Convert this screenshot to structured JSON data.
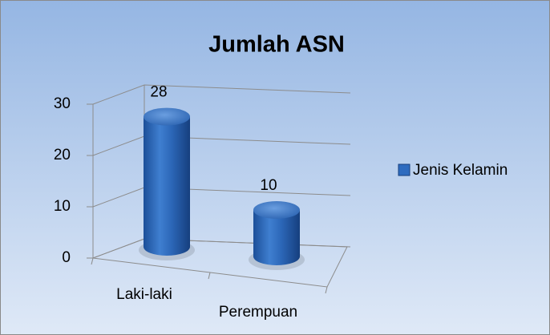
{
  "chart_data": {
    "type": "bar",
    "title": "Jumlah ASN",
    "categories": [
      "Laki-laki",
      "Perempuan"
    ],
    "series": [
      {
        "name": "Jenis Kelamin",
        "color": "#2e6bbf",
        "values": [
          28,
          10
        ]
      }
    ],
    "ylim": [
      0,
      30
    ],
    "yticks": [
      0,
      10,
      20,
      30
    ],
    "grid": true,
    "legend": "right"
  }
}
